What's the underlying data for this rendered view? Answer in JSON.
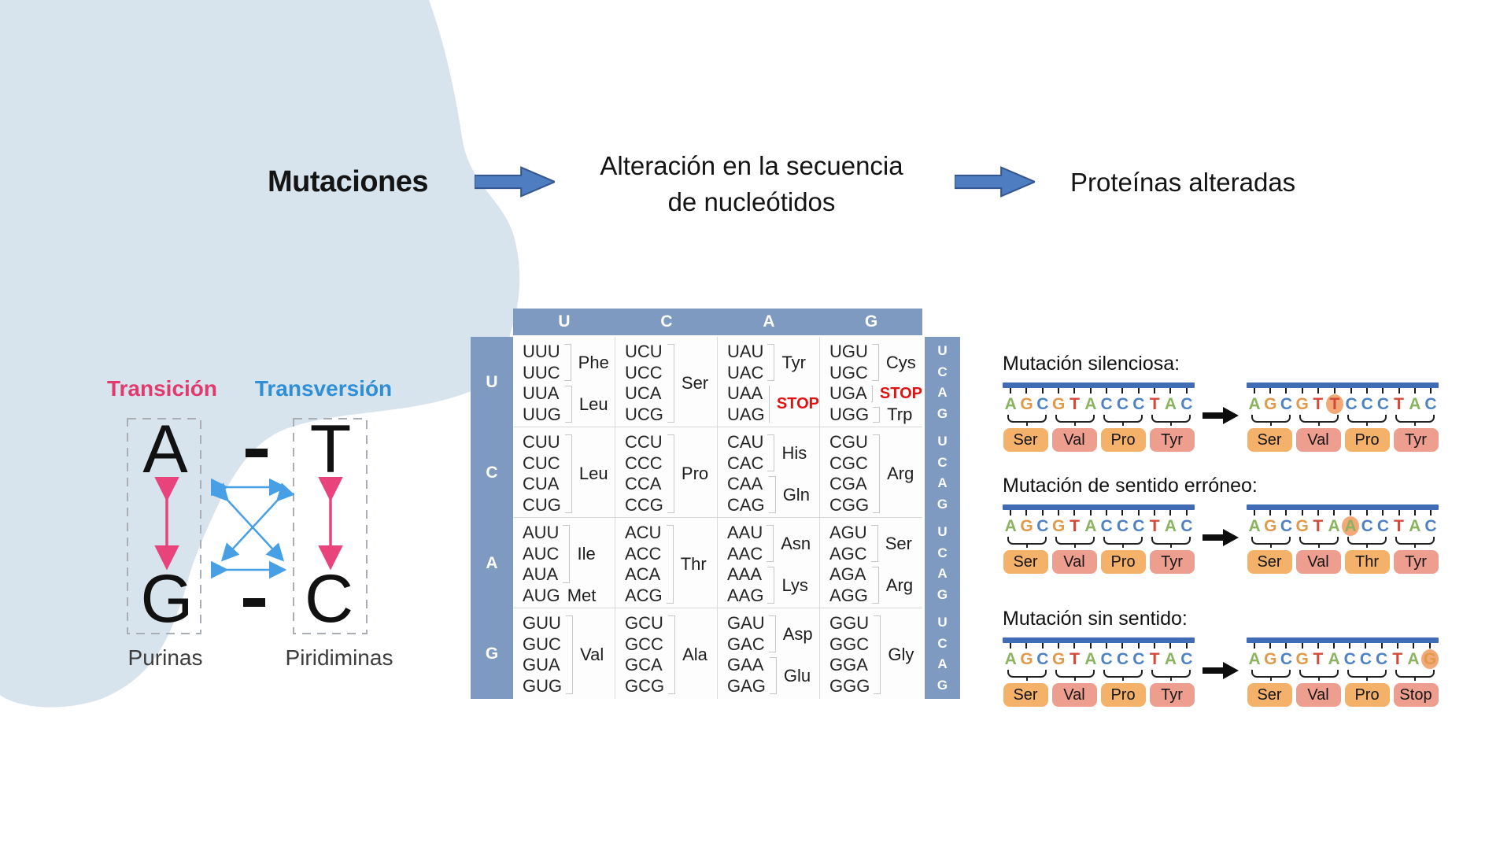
{
  "flow": {
    "step1": "Mutaciones",
    "step2_line1": "Alteración en la secuencia",
    "step2_line2": "de nucleótidos",
    "step3": "Proteínas alteradas",
    "arrow_color": "#4e7dc2",
    "arrow_border": "#35568e"
  },
  "transition_diagram": {
    "transition_label": "Transición",
    "transversion_label": "Transversión",
    "base_top_left": "A",
    "base_top_right": "T",
    "base_bottom_left": "G",
    "base_bottom_right": "C",
    "purines_label": "Purinas",
    "pyrimidines_label": "Piridiminas",
    "transition_color": "#e23a6d",
    "transversion_color": "#2e8ed6",
    "transition_arrow_color": "#e8447b",
    "transversion_arrow_color": "#47a0e6",
    "blob_color": "#d7e3ed"
  },
  "codon_table": {
    "header_color": "#7f9ac1",
    "stop_color": "#e01212",
    "column_headers": [
      "U",
      "C",
      "A",
      "G"
    ],
    "third_base_labels": [
      "U",
      "C",
      "A",
      "G"
    ],
    "rows": [
      {
        "label": "U",
        "cells": [
          {
            "groups": [
              {
                "codons": [
                  "UUU",
                  "UUC"
                ],
                "amino": "Phe"
              },
              {
                "codons": [
                  "UUA",
                  "UUG"
                ],
                "amino": "Leu"
              }
            ]
          },
          {
            "groups": [
              {
                "codons": [
                  "UCU",
                  "UCC",
                  "UCA",
                  "UCG"
                ],
                "amino": "Ser"
              }
            ]
          },
          {
            "groups": [
              {
                "codons": [
                  "UAU",
                  "UAC"
                ],
                "amino": "Tyr"
              },
              {
                "codons": [
                  "UAA",
                  "UAG"
                ],
                "amino": "STOP",
                "stop": true
              }
            ]
          },
          {
            "groups": [
              {
                "codons": [
                  "UGU",
                  "UGC"
                ],
                "amino": "Cys"
              },
              {
                "codons": [
                  "UGA"
                ],
                "amino": "STOP",
                "stop": true
              },
              {
                "codons": [
                  "UGG"
                ],
                "amino": "Trp"
              }
            ]
          }
        ]
      },
      {
        "label": "C",
        "cells": [
          {
            "groups": [
              {
                "codons": [
                  "CUU",
                  "CUC",
                  "CUA",
                  "CUG"
                ],
                "amino": "Leu"
              }
            ]
          },
          {
            "groups": [
              {
                "codons": [
                  "CCU",
                  "CCC",
                  "CCA",
                  "CCG"
                ],
                "amino": "Pro"
              }
            ]
          },
          {
            "groups": [
              {
                "codons": [
                  "CAU",
                  "CAC"
                ],
                "amino": "His"
              },
              {
                "codons": [
                  "CAA",
                  "CAG"
                ],
                "amino": "Gln"
              }
            ]
          },
          {
            "groups": [
              {
                "codons": [
                  "CGU",
                  "CGC",
                  "CGA",
                  "CGG"
                ],
                "amino": "Arg"
              }
            ]
          }
        ]
      },
      {
        "label": "A",
        "cells": [
          {
            "groups": [
              {
                "codons": [
                  "AUU",
                  "AUC",
                  "AUA"
                ],
                "amino": "Ile"
              },
              {
                "codons": [
                  "AUG"
                ],
                "amino": "Met",
                "bracket": false
              }
            ]
          },
          {
            "groups": [
              {
                "codons": [
                  "ACU",
                  "ACC",
                  "ACA",
                  "ACG"
                ],
                "amino": "Thr"
              }
            ]
          },
          {
            "groups": [
              {
                "codons": [
                  "AAU",
                  "AAC"
                ],
                "amino": "Asn"
              },
              {
                "codons": [
                  "AAA",
                  "AAG"
                ],
                "amino": "Lys"
              }
            ]
          },
          {
            "groups": [
              {
                "codons": [
                  "AGU",
                  "AGC"
                ],
                "amino": "Ser"
              },
              {
                "codons": [
                  "AGA",
                  "AGG"
                ],
                "amino": "Arg"
              }
            ]
          }
        ]
      },
      {
        "label": "G",
        "cells": [
          {
            "groups": [
              {
                "codons": [
                  "GUU",
                  "GUC",
                  "GUA",
                  "GUG"
                ],
                "amino": "Val"
              }
            ]
          },
          {
            "groups": [
              {
                "codons": [
                  "GCU",
                  "GCC",
                  "GCA",
                  "GCG"
                ],
                "amino": "Ala"
              }
            ]
          },
          {
            "groups": [
              {
                "codons": [
                  "GAU",
                  "GAC"
                ],
                "amino": "Asp"
              },
              {
                "codons": [
                  "GAA",
                  "GAG"
                ],
                "amino": "Glu"
              }
            ]
          },
          {
            "groups": [
              {
                "codons": [
                  "GGU",
                  "GGC",
                  "GGA",
                  "GGG"
                ],
                "amino": "Gly"
              }
            ]
          }
        ]
      }
    ]
  },
  "mutations": {
    "base_colors": {
      "A": "#8ab45f",
      "G": "#df9a4b",
      "C": "#4f82c1",
      "T": "#d4493a"
    },
    "box_colors": [
      "#f3b169",
      "#ee9e8f"
    ],
    "highlight_color": "#f2a977",
    "strand_bar_color": "#3f6cb5",
    "blocks": [
      {
        "title": "Mutación silenciosa:",
        "before": {
          "seq": "AGCGTACCCTAC",
          "aminos": [
            "Ser",
            "Val",
            "Pro",
            "Tyr"
          ]
        },
        "after": {
          "seq": "AGCGTTCCCTAC",
          "aminos": [
            "Ser",
            "Val",
            "Pro",
            "Tyr"
          ],
          "highlight": 5
        }
      },
      {
        "title": "Mutación de sentido erróneo:",
        "before": {
          "seq": "AGCGTACCCTAC",
          "aminos": [
            "Ser",
            "Val",
            "Pro",
            "Tyr"
          ]
        },
        "after": {
          "seq": "AGCGTAACCTAC",
          "aminos": [
            "Ser",
            "Val",
            "Thr",
            "Tyr"
          ],
          "highlight": 6
        }
      },
      {
        "title": "Mutación sin sentido:",
        "before": {
          "seq": "AGCGTACCCTAC",
          "aminos": [
            "Ser",
            "Val",
            "Pro",
            "Tyr"
          ]
        },
        "after": {
          "seq": "AGCGTACCCTAG",
          "aminos": [
            "Ser",
            "Val",
            "Pro",
            "Stop"
          ],
          "highlight": 11
        }
      }
    ]
  }
}
